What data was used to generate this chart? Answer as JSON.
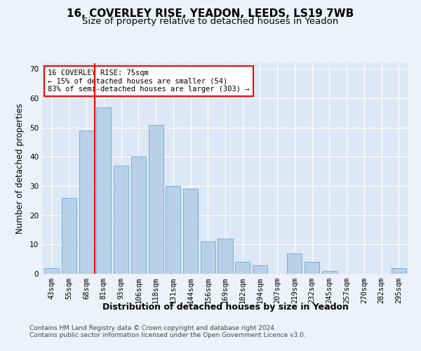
{
  "title_line1": "16, COVERLEY RISE, YEADON, LEEDS, LS19 7WB",
  "title_line2": "Size of property relative to detached houses in Yeadon",
  "xlabel": "Distribution of detached houses by size in Yeadon",
  "ylabel": "Number of detached properties",
  "categories": [
    "43sqm",
    "55sqm",
    "68sqm",
    "81sqm",
    "93sqm",
    "106sqm",
    "118sqm",
    "131sqm",
    "144sqm",
    "156sqm",
    "169sqm",
    "182sqm",
    "194sqm",
    "207sqm",
    "219sqm",
    "232sqm",
    "245sqm",
    "257sqm",
    "270sqm",
    "282sqm",
    "295sqm"
  ],
  "values": [
    2,
    26,
    49,
    57,
    37,
    40,
    51,
    30,
    29,
    11,
    12,
    4,
    3,
    0,
    7,
    4,
    1,
    0,
    0,
    0,
    2
  ],
  "bar_color": "#b8d0e8",
  "bar_edge_color": "#7bafd4",
  "red_line_x": 2.5,
  "red_line_label": "16 COVERLEY RISE: 75sqm",
  "annotation_line2": "← 15% of detached houses are smaller (54)",
  "annotation_line3": "83% of semi-detached houses are larger (303) →",
  "ylim": [
    0,
    72
  ],
  "yticks": [
    0,
    10,
    20,
    30,
    40,
    50,
    60,
    70
  ],
  "footer_line1": "Contains HM Land Registry data © Crown copyright and database right 2024.",
  "footer_line2": "Contains public sector information licensed under the Open Government Licence v3.0.",
  "bg_color": "#edf2fa",
  "plot_bg_color": "#dce8f5",
  "grid_color": "#ffffff",
  "title_fontsize": 11,
  "subtitle_fontsize": 9.5,
  "axis_label_fontsize": 8.5,
  "tick_fontsize": 7.5,
  "footer_fontsize": 6.5,
  "annot_fontsize": 7.5
}
